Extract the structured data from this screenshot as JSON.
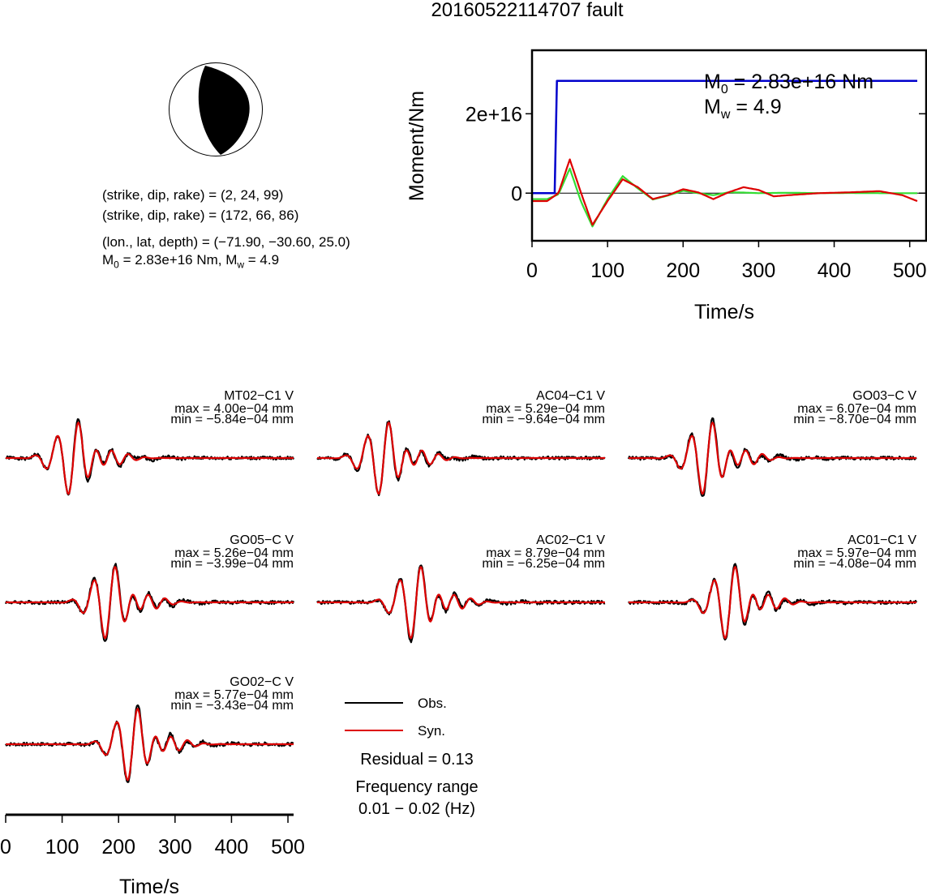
{
  "title": "20160522114707 fault",
  "focal": {
    "np1": "(strike, dip, rake) = (2, 24, 99)",
    "np2": "(strike, dip, rake) = (172, 66, 86)",
    "loc": "(lon., lat, depth) = (−71.90, −30.60, 25.0)",
    "m0_prefix": "M",
    "m0_sub": "0",
    "m0_text": " = 2.83e+16 Nm, M",
    "mw_sub": "w",
    "mw_text": " = 4.9"
  },
  "moment_plot": {
    "xlabel": "Time/s",
    "ylabel": "Moment/Nm",
    "xlim": [
      0,
      510
    ],
    "ylim": [
      -1.2e+16,
      3.6e+16
    ],
    "xticks": [
      "0",
      "100",
      "200",
      "300",
      "400",
      "500"
    ],
    "yticks": [
      "0",
      "2e+16"
    ],
    "annot_m0_prefix": "M",
    "annot_m0_sub": "0",
    "annot_m0_text": " = 2.83e+16 Nm",
    "annot_mw_prefix": "M",
    "annot_mw_sub": "w",
    "annot_mw_text": " = 4.9"
  },
  "chart_data": [
    {
      "type": "line",
      "title": "Moment/Nm",
      "xlabel": "Time/s",
      "ylabel": "Moment/Nm",
      "xlim": [
        0,
        510
      ],
      "ylim": [
        -1.2e+16,
        3.6e+16
      ],
      "series": [
        {
          "color": "#0000cc",
          "x": [
            0,
            30,
            33,
            510
          ],
          "values": [
            0,
            0,
            2.83e+16,
            2.83e+16
          ]
        },
        {
          "color": "#33dd33",
          "x": [
            0,
            20,
            35,
            50,
            65,
            80,
            100,
            120,
            140,
            160,
            180,
            200,
            220,
            240,
            260,
            280,
            300,
            340,
            380,
            420,
            460,
            510
          ],
          "values": [
            -1500000000000000.0,
            -1500000000000000.0,
            -300000000000000.0,
            6200000000000000.0,
            -2200000000000000.0,
            -8400000000000000.0,
            -1500000000000000.0,
            4300000000000000.0,
            1200000000000000.0,
            -1600000000000000.0,
            -600000000000000.0,
            600000000000000.0,
            0,
            -500000000000000.0,
            200000000000000.0,
            150000000000000.0,
            0,
            100000000000000.0,
            0,
            50000000000000.0,
            0,
            0
          ]
        },
        {
          "color": "#dd0000",
          "x": [
            0,
            20,
            35,
            50,
            65,
            80,
            100,
            120,
            140,
            160,
            180,
            200,
            220,
            240,
            260,
            280,
            300,
            320,
            340,
            380,
            420,
            460,
            490,
            510
          ],
          "values": [
            -2000000000000000.0,
            -2000000000000000.0,
            0,
            8500000000000000.0,
            0,
            -8000000000000000.0,
            -2000000000000000.0,
            3500000000000000.0,
            1500000000000000.0,
            -1500000000000000.0,
            -500000000000000.0,
            1000000000000000.0,
            200000000000000.0,
            -1500000000000000.0,
            200000000000000.0,
            1500000000000000.0,
            800000000000000.0,
            -800000000000000.0,
            -500000000000000.0,
            0,
            200000000000000.0,
            500000000000000.0,
            -500000000000000.0,
            -2000000000000000.0
          ]
        }
      ]
    },
    {
      "type": "line",
      "xlabel": "Time/s",
      "xlim": [
        0,
        510
      ],
      "legend": "bottom-center",
      "legend_entries": [
        {
          "label": "Obs.",
          "color": "#000000"
        },
        {
          "label": "Syn.",
          "color": "#dd0000"
        }
      ],
      "residual": "Residual = 0.13",
      "frequency_label": "Frequency range",
      "frequency_range": "0.01 − 0.02 (Hz)",
      "xticks": [
        "0",
        "100",
        "200",
        "300",
        "400",
        "500"
      ],
      "stations": [
        {
          "name": "MT02−C1 V",
          "max": "max = 4.00e−04 mm",
          "min": "min = −5.84e−04 mm",
          "t0": 120,
          "amax": 4.0,
          "amin": 5.84,
          "seed": 1
        },
        {
          "name": "AC04−C1 V",
          "max": "max = 5.29e−04 mm",
          "min": "min = −9.64e−04 mm",
          "t0": 118,
          "amax": 5.29,
          "amin": 9.64,
          "seed": 2
        },
        {
          "name": "GO03−C V",
          "max": "max = 6.07e−04 mm",
          "min": "min = −8.70e−04 mm",
          "t0": 140,
          "amax": 6.07,
          "amin": 8.7,
          "seed": 3
        },
        {
          "name": "GO05−C V",
          "max": "max = 5.26e−04 mm",
          "min": "min = −3.99e−04 mm",
          "t0": 185,
          "amax": 5.26,
          "amin": 3.99,
          "seed": 4
        },
        {
          "name": "AC02−C1 V",
          "max": "max = 8.79e−04 mm",
          "min": "min = −6.25e−04 mm",
          "t0": 175,
          "amax": 8.79,
          "amin": 6.25,
          "seed": 5
        },
        {
          "name": "AC01−C1 V",
          "max": "max = 5.97e−04 mm",
          "min": "min = −4.08e−04 mm",
          "t0": 180,
          "amax": 5.97,
          "amin": 4.08,
          "seed": 6
        },
        {
          "name": "GO02−C V",
          "max": "max = 5.77e−04 mm",
          "min": "min = −3.43e−04 mm",
          "t0": 225,
          "amax": 5.77,
          "amin": 3.43,
          "seed": 7
        }
      ]
    }
  ]
}
